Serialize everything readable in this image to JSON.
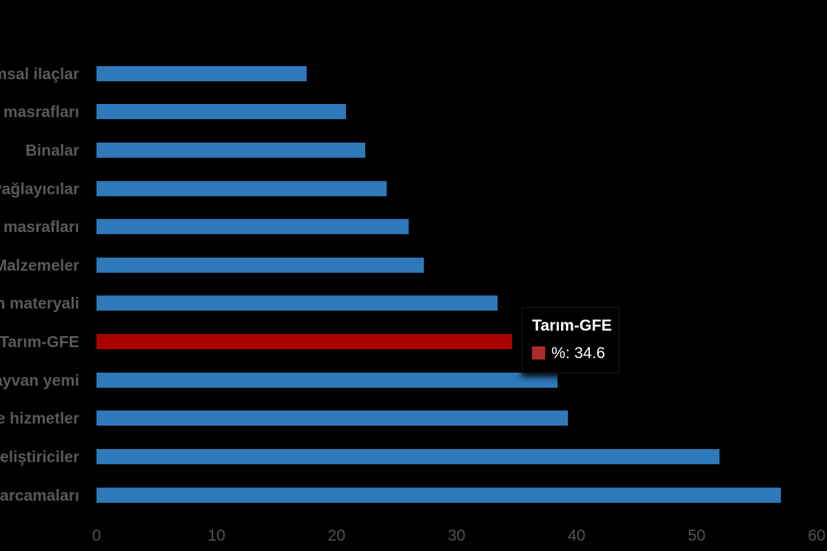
{
  "chart_data": {
    "type": "bar",
    "orientation": "horizontal",
    "title": "",
    "categories": [
      "ımsal ilaçlar",
      "n masrafları",
      "Binalar",
      "yağlayıcılar",
      "n masrafları",
      "Malzemeler",
      "m materyali",
      "Tarım-GFE",
      "layvan yemi",
      "ve hizmetler",
      "geliştiriciler",
      "harcamaları"
    ],
    "values": [
      17.5,
      20.8,
      22.4,
      24.2,
      26.0,
      27.3,
      33.4,
      34.6,
      38.4,
      39.3,
      51.9,
      57.0
    ],
    "series_name": "%",
    "highlight_index": 7,
    "highlight_category": "Tarım-GFE",
    "x_ticks": [
      "0",
      "10",
      "20",
      "30",
      "40",
      "50",
      "60"
    ],
    "xlim": [
      0,
      60
    ],
    "grid": false,
    "legend": false,
    "bar_color": "#2E79B9",
    "highlight_color": "#AA0000"
  },
  "tooltip": {
    "title": "Tarım-GFE",
    "value_text": "%: 34.6",
    "swatch_color": "#B12A2E"
  },
  "colors": {
    "background": "#000000",
    "label_text": "#595959",
    "tick_text": "#525252",
    "tooltip_text": "#FFFFFF"
  }
}
